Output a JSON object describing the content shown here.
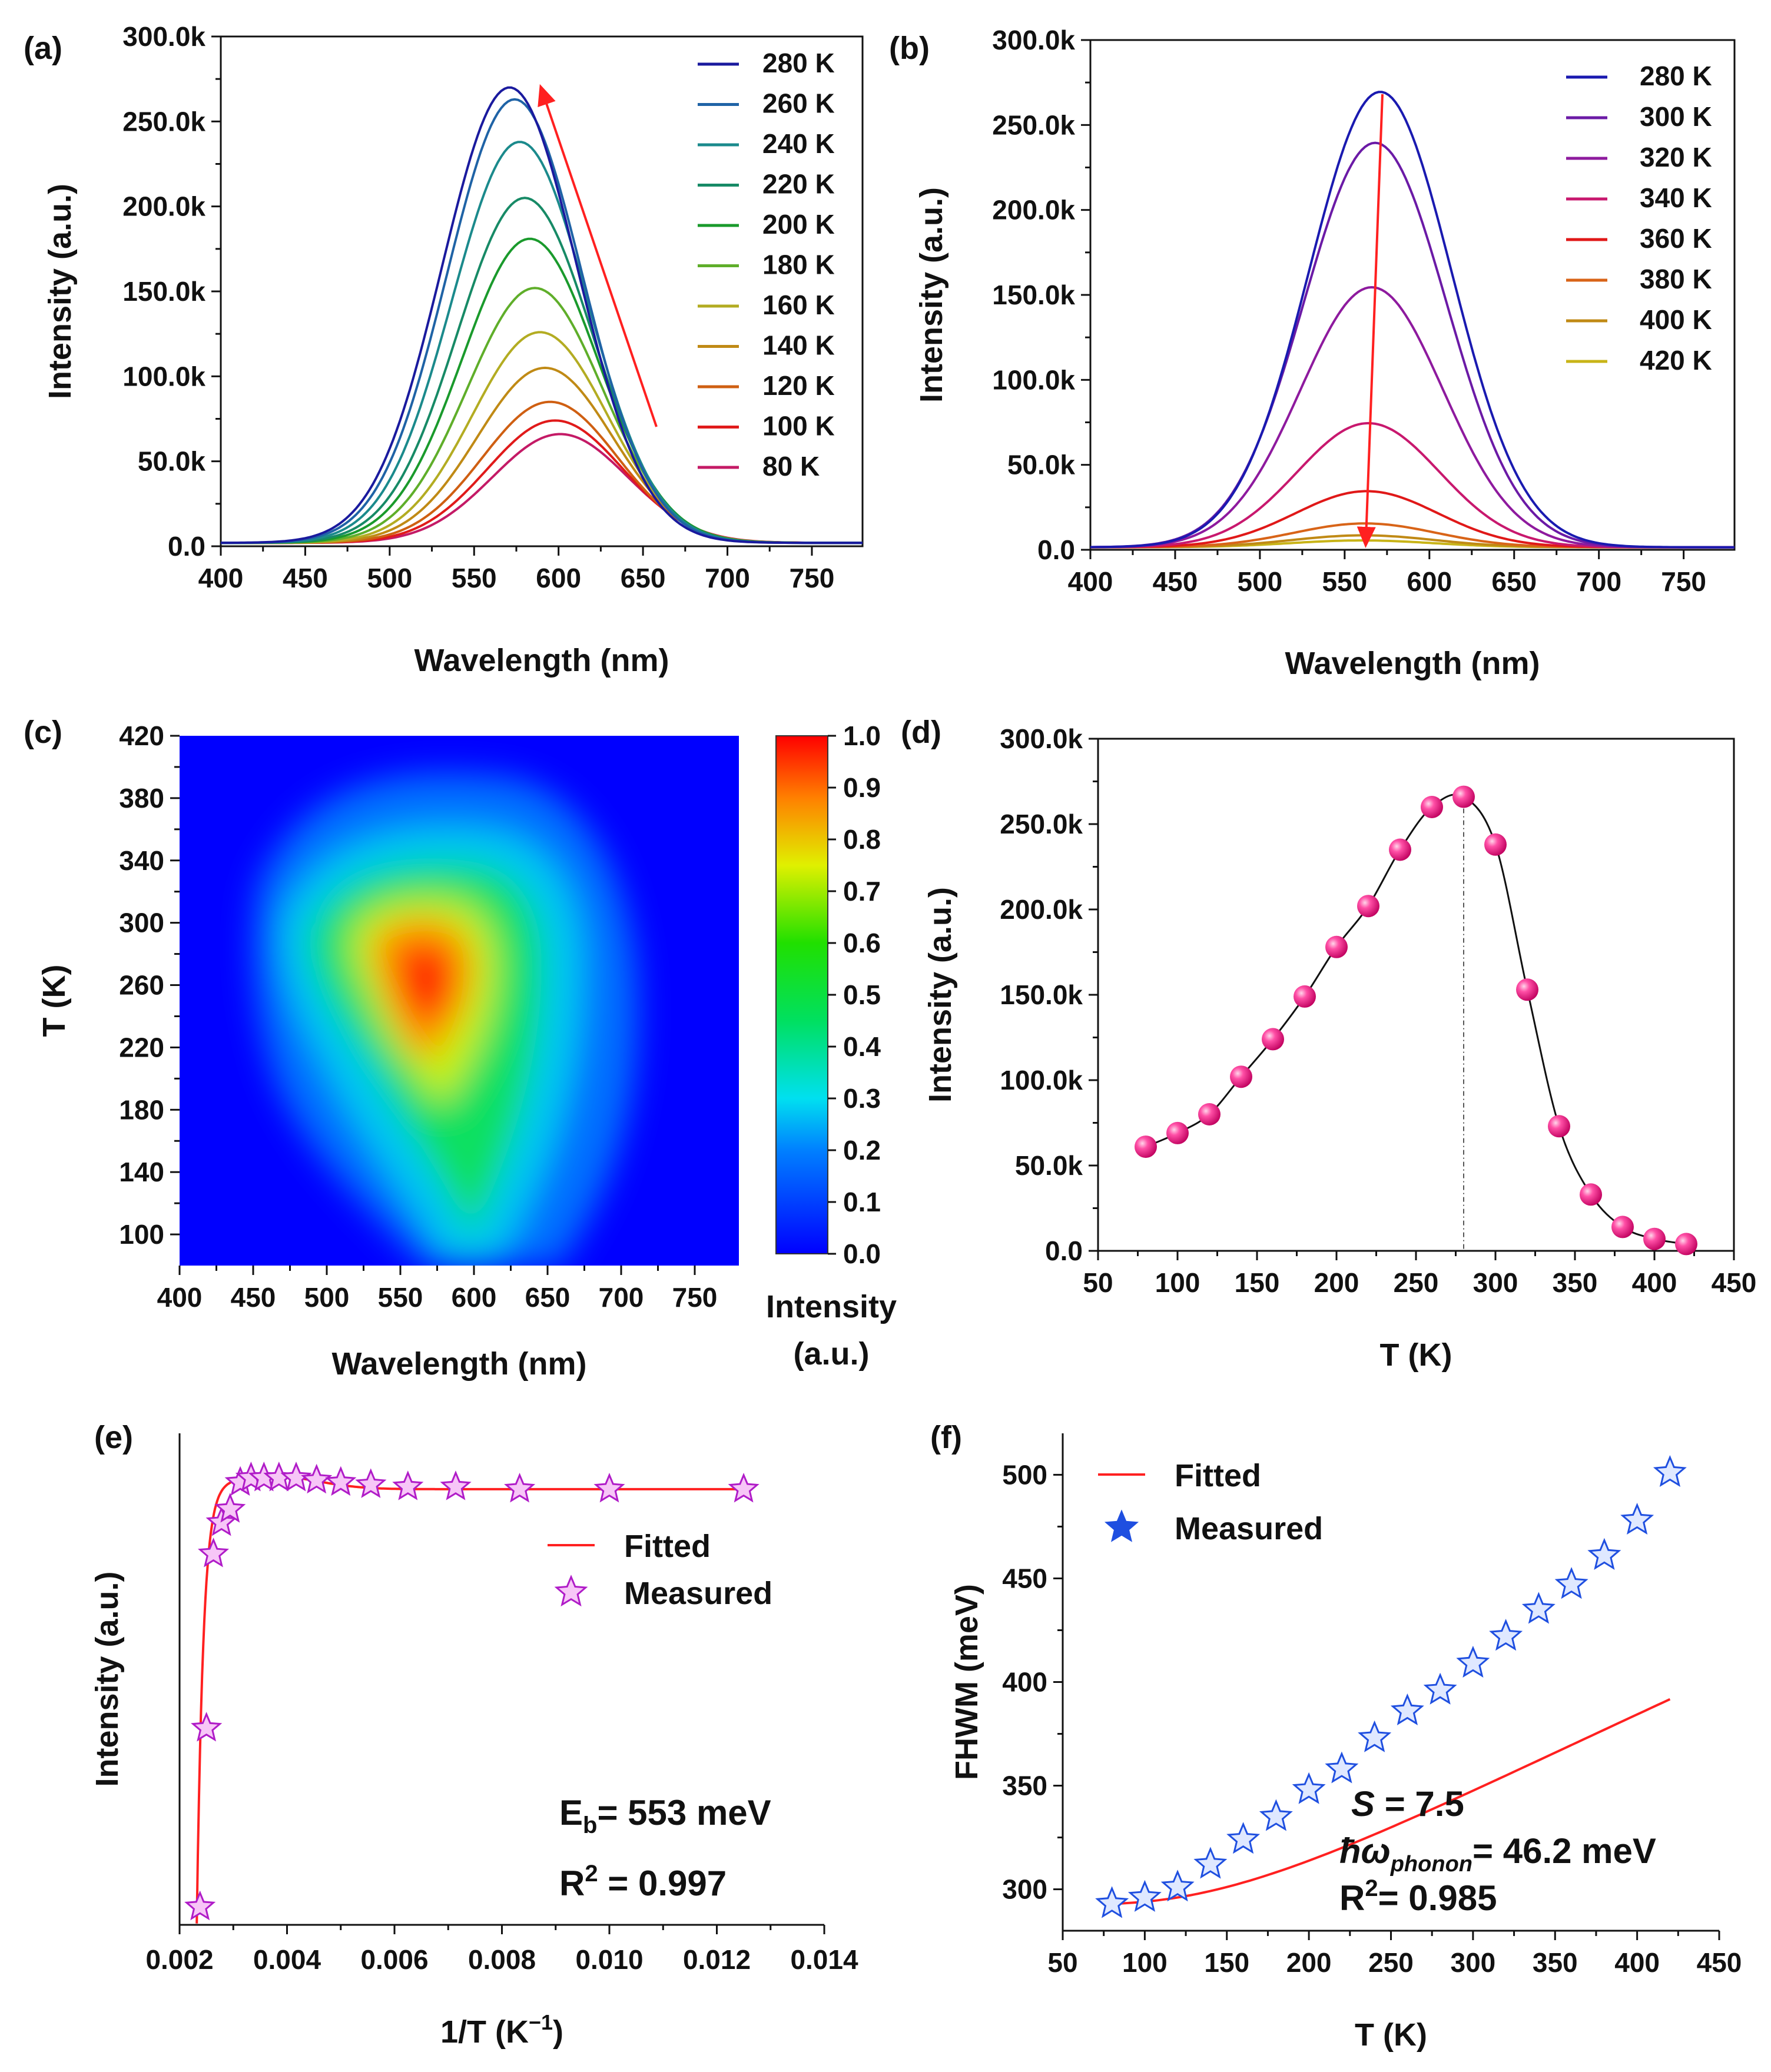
{
  "chart_data": [
    {
      "panel": "(a)",
      "type": "line",
      "xlabel": "Wavelength (nm)",
      "ylabel": "Intensity (a.u.)",
      "xlim": [
        400,
        780
      ],
      "ylim": [
        0,
        300000
      ],
      "xticks": [
        "400",
        "450",
        "500",
        "550",
        "600",
        "650",
        "700",
        "750"
      ],
      "yticks": [
        "0.0",
        "50.0k",
        "100.0k",
        "150.0k",
        "200.0k",
        "250.0k",
        "300.0k"
      ],
      "series": [
        {
          "name": "280 K",
          "peak": 268000,
          "center": 571,
          "color": "#1a1a9e"
        },
        {
          "name": "260 K",
          "peak": 261000,
          "center": 574,
          "color": "#1f63a6"
        },
        {
          "name": "240 K",
          "peak": 236000,
          "center": 577,
          "color": "#1b8a8c"
        },
        {
          "name": "220 K",
          "peak": 203000,
          "center": 580,
          "color": "#178a66"
        },
        {
          "name": "200 K",
          "peak": 179000,
          "center": 583,
          "color": "#1a9a2c"
        },
        {
          "name": "180 K",
          "peak": 150000,
          "center": 586,
          "color": "#5fae2a"
        },
        {
          "name": "160 K",
          "peak": 124000,
          "center": 589,
          "color": "#b3ac22"
        },
        {
          "name": "140 K",
          "peak": 103000,
          "center": 592,
          "color": "#c08a15"
        },
        {
          "name": "120 K",
          "peak": 83000,
          "center": 595,
          "color": "#cf5f12"
        },
        {
          "name": "100 K",
          "peak": 72000,
          "center": 598,
          "color": "#e01a1a"
        },
        {
          "name": "80 K",
          "peak": 64000,
          "center": 601,
          "color": "#c41a66"
        }
      ]
    },
    {
      "panel": "(b)",
      "type": "line",
      "xlabel": "Wavelength (nm)",
      "ylabel": "Intensity (a.u.)",
      "xlim": [
        400,
        780
      ],
      "ylim": [
        0,
        300000
      ],
      "xticks": [
        "400",
        "450",
        "500",
        "550",
        "600",
        "650",
        "700",
        "750"
      ],
      "yticks": [
        "0.0",
        "50.0k",
        "100.0k",
        "150.0k",
        "200.0k",
        "250.0k",
        "300.0k"
      ],
      "series": [
        {
          "name": "280 K",
          "peak": 268000,
          "center": 571,
          "color": "#1a1ab0"
        },
        {
          "name": "300 K",
          "peak": 238000,
          "center": 568,
          "color": "#6b1aa6"
        },
        {
          "name": "320 K",
          "peak": 153000,
          "center": 566,
          "color": "#8e1a9e"
        },
        {
          "name": "340 K",
          "peak": 73000,
          "center": 564,
          "color": "#c8186e"
        },
        {
          "name": "360 K",
          "peak": 33000,
          "center": 563,
          "color": "#e01818"
        },
        {
          "name": "380 K",
          "peak": 14000,
          "center": 562,
          "color": "#d86418"
        },
        {
          "name": "400 K",
          "peak": 7000,
          "center": 561,
          "color": "#c08a15"
        },
        {
          "name": "420 K",
          "peak": 4000,
          "center": 560,
          "color": "#c8b418"
        }
      ]
    },
    {
      "panel": "(c)",
      "type": "heatmap",
      "xlabel": "Wavelength (nm)",
      "ylabel": "T (K)",
      "xlim": [
        400,
        780
      ],
      "ylim": [
        80,
        420
      ],
      "xticks": [
        "400",
        "450",
        "500",
        "550",
        "600",
        "650",
        "700",
        "750"
      ],
      "yticks": [
        "100",
        "140",
        "180",
        "220",
        "260",
        "300",
        "340",
        "380",
        "420"
      ],
      "colorbar_ticks": [
        "0.0",
        "0.1",
        "0.2",
        "0.3",
        "0.4",
        "0.5",
        "0.6",
        "0.7",
        "0.8",
        "0.9",
        "1.0"
      ],
      "colorbar_label_1": "Intensity",
      "colorbar_label_2": "(a.u.)",
      "max_at": {
        "wavelength": 572,
        "T": 275
      }
    },
    {
      "panel": "(d)",
      "type": "scatter",
      "xlabel": "T (K)",
      "ylabel": "Intensity (a.u.)",
      "xlim": [
        50,
        450
      ],
      "ylim": [
        0,
        300000
      ],
      "xticks": [
        "50",
        "100",
        "150",
        "200",
        "250",
        "300",
        "350",
        "400",
        "450"
      ],
      "yticks": [
        "0.0",
        "50.0k",
        "100.0k",
        "150.0k",
        "200.0k",
        "250.0k",
        "300.0k"
      ],
      "x": [
        80,
        100,
        120,
        140,
        160,
        180,
        200,
        220,
        240,
        260,
        280,
        300,
        320,
        340,
        360,
        380,
        400,
        420
      ],
      "y": [
        61000,
        69000,
        80000,
        102000,
        124000,
        149000,
        178000,
        202000,
        235000,
        260000,
        266000,
        238000,
        153000,
        73000,
        33000,
        14000,
        7000,
        4000
      ],
      "vline_x": 280
    },
    {
      "panel": "(e)",
      "type": "scatter",
      "xlabel": "1/T (K",
      "xlabel_sup": "−1",
      "xlabel_end": ")",
      "ylabel": "Intensity (a.u.)",
      "xlim": [
        0.002,
        0.014
      ],
      "ylim": [
        0,
        1.1
      ],
      "xticks": [
        "0.002",
        "0.004",
        "0.006",
        "0.008",
        "0.010",
        "0.012",
        "0.014"
      ],
      "legend": [
        "Fitted",
        "Measured"
      ],
      "x": [
        0.00238,
        0.0025,
        0.00263,
        0.00278,
        0.00294,
        0.00313,
        0.00333,
        0.00357,
        0.00385,
        0.00417,
        0.00455,
        0.005,
        0.00556,
        0.00625,
        0.00714,
        0.00833,
        0.01,
        0.0125
      ],
      "y": [
        0.04,
        0.44,
        0.83,
        0.9,
        0.93,
        0.99,
        1.0,
        1.0,
        1.0,
        1.0,
        0.995,
        0.99,
        0.985,
        0.98,
        0.98,
        0.975,
        0.975,
        0.975
      ],
      "eb_prefix": "E",
      "eb_sub": "b",
      "eb_value": "= 553 meV",
      "r2_prefix": "R",
      "r2_sup": "2",
      "r2_value": " = 0.997"
    },
    {
      "panel": "(f)",
      "type": "scatter",
      "xlabel": "T (K)",
      "ylabel": "FHWM (meV)",
      "xlim": [
        50,
        450
      ],
      "ylim": [
        280,
        520
      ],
      "xticks": [
        "50",
        "100",
        "150",
        "200",
        "250",
        "300",
        "350",
        "400",
        "450"
      ],
      "yticks": [
        "300",
        "350",
        "400",
        "450",
        "500"
      ],
      "legend": [
        "Fitted",
        "Measured"
      ],
      "x": [
        80,
        100,
        120,
        140,
        160,
        180,
        200,
        220,
        240,
        260,
        280,
        300,
        320,
        340,
        360,
        380,
        400,
        420
      ],
      "y": [
        293,
        296,
        301,
        312,
        324,
        335,
        348,
        358,
        373,
        386,
        396,
        409,
        422,
        435,
        447,
        461,
        478,
        501
      ],
      "s_label": "S",
      "s_value": " = 7.5",
      "hw_label": "ħω",
      "hw_sub": "phonon",
      "hw_value": "= 46.2 meV",
      "r2_prefix": "R",
      "r2_sup": "2",
      "r2_value": "= 0.985"
    }
  ]
}
